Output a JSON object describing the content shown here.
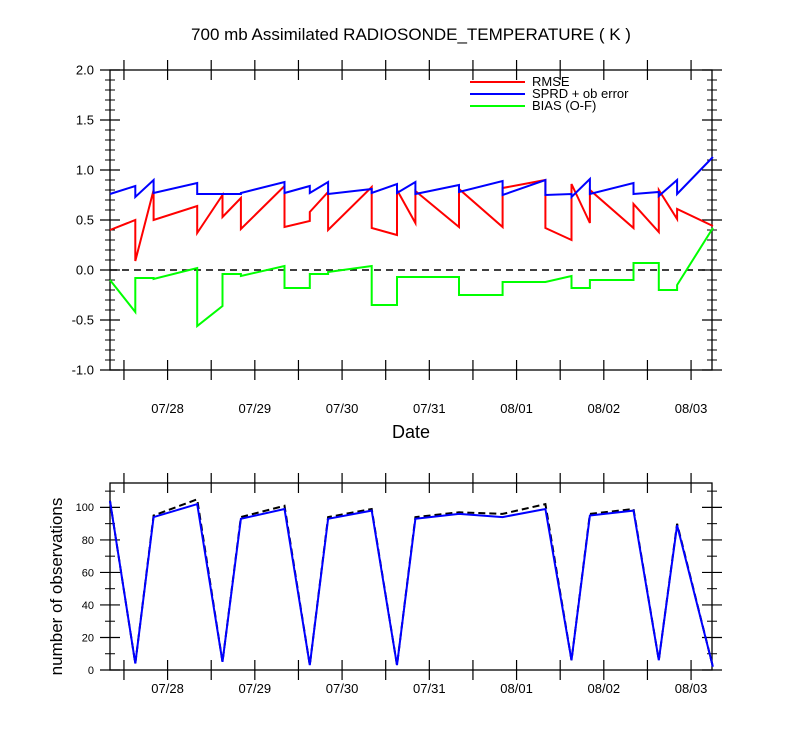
{
  "chart_data": [
    {
      "type": "line",
      "title": "700 mb Assimilated RADIOSONDE_TEMPERATURE ( K )",
      "xlabel": "Date",
      "ylabel": "",
      "ylim": [
        -1.0,
        2.0
      ],
      "yticks": [
        "2.0",
        "1.5",
        "1.0",
        "0.5",
        "0.0",
        "-0.5",
        "-1.0"
      ],
      "ytick_values": [
        2.0,
        1.5,
        1.0,
        0.5,
        0.0,
        -0.5,
        -1.0
      ],
      "date_ticks": [
        "07/28",
        "07/29",
        "07/30",
        "07/31",
        "08/01",
        "08/02",
        "08/03"
      ],
      "date_tick_values": [
        0.66,
        1.66,
        2.66,
        3.66,
        4.66,
        5.66,
        6.66
      ],
      "xlim": [
        0.0,
        6.9
      ],
      "legend_position": "top-right",
      "zero_line": true,
      "series": [
        {
          "name": "RMSE",
          "color": "#ff0000",
          "x": [
            0.0,
            0.29,
            0.29,
            0.5,
            0.5,
            1.0,
            1.0,
            1.29,
            1.29,
            1.5,
            1.5,
            2.0,
            2.0,
            2.29,
            2.29,
            2.5,
            2.5,
            3.0,
            3.0,
            3.29,
            3.29,
            3.5,
            3.5,
            4.0,
            4.0,
            4.5,
            4.5,
            4.99,
            4.99,
            5.29,
            5.29,
            5.5,
            5.5,
            6.0,
            6.0,
            6.29,
            6.29,
            6.5,
            6.5,
            6.91
          ],
          "y": [
            0.4,
            0.5,
            0.09,
            0.8,
            0.5,
            0.64,
            0.37,
            0.75,
            0.53,
            0.72,
            0.41,
            0.84,
            0.43,
            0.49,
            0.58,
            0.78,
            0.4,
            0.83,
            0.42,
            0.35,
            0.8,
            0.47,
            0.79,
            0.43,
            0.81,
            0.43,
            0.82,
            0.9,
            0.42,
            0.3,
            0.86,
            0.47,
            0.8,
            0.42,
            0.66,
            0.38,
            0.8,
            0.51,
            0.61,
            0.44
          ]
        },
        {
          "name": "SPRD + ob error",
          "color": "#0000ff",
          "x": [
            0.0,
            0.29,
            0.29,
            0.5,
            0.5,
            1.0,
            1.0,
            1.29,
            1.29,
            1.5,
            1.5,
            2.0,
            2.0,
            2.29,
            2.29,
            2.5,
            2.5,
            3.0,
            3.0,
            3.29,
            3.29,
            3.5,
            3.5,
            4.0,
            4.0,
            4.5,
            4.5,
            4.99,
            4.99,
            5.29,
            5.29,
            5.5,
            5.5,
            6.0,
            6.0,
            6.29,
            6.29,
            6.5,
            6.5,
            6.91
          ],
          "y": [
            0.76,
            0.84,
            0.73,
            0.9,
            0.77,
            0.87,
            0.76,
            0.76,
            0.76,
            0.76,
            0.77,
            0.88,
            0.77,
            0.84,
            0.77,
            0.88,
            0.76,
            0.81,
            0.77,
            0.86,
            0.77,
            0.88,
            0.76,
            0.85,
            0.78,
            0.89,
            0.75,
            0.9,
            0.75,
            0.76,
            0.73,
            0.91,
            0.76,
            0.87,
            0.76,
            0.78,
            0.74,
            0.9,
            0.76,
            1.13
          ]
        },
        {
          "name": "BIAS (O-F)",
          "color": "#00ff00",
          "x": [
            0.0,
            0.29,
            0.29,
            0.5,
            0.5,
            1.0,
            1.0,
            1.29,
            1.29,
            1.5,
            1.5,
            2.0,
            2.0,
            2.29,
            2.29,
            2.5,
            2.5,
            3.0,
            3.0,
            3.29,
            3.29,
            3.5,
            3.5,
            4.0,
            4.0,
            4.5,
            4.5,
            4.99,
            4.99,
            5.29,
            5.29,
            5.5,
            5.5,
            6.0,
            6.0,
            6.29,
            6.29,
            6.5,
            6.5,
            6.91
          ],
          "y": [
            -0.1,
            -0.42,
            -0.08,
            -0.08,
            -0.09,
            0.02,
            -0.56,
            -0.36,
            -0.04,
            -0.04,
            -0.06,
            0.04,
            -0.18,
            -0.18,
            -0.04,
            -0.04,
            -0.02,
            0.04,
            -0.35,
            -0.35,
            -0.07,
            -0.07,
            -0.07,
            -0.07,
            -0.25,
            -0.25,
            -0.12,
            -0.12,
            -0.12,
            -0.06,
            -0.18,
            -0.18,
            -0.1,
            -0.1,
            0.07,
            0.07,
            -0.2,
            -0.2,
            -0.15,
            0.42
          ]
        }
      ]
    },
    {
      "type": "line",
      "title": "",
      "xlabel": "",
      "ylabel": "number of observations",
      "ylim": [
        0,
        115
      ],
      "yticks": [
        "100",
        "80",
        "60",
        "40",
        "20",
        "0"
      ],
      "ytick_values": [
        100,
        80,
        60,
        40,
        20,
        0
      ],
      "date_ticks": [
        "07/28",
        "07/29",
        "07/30",
        "07/31",
        "08/01",
        "08/02",
        "08/03"
      ],
      "date_tick_values": [
        0.66,
        1.66,
        2.66,
        3.66,
        4.66,
        5.66,
        6.66
      ],
      "xlim": [
        0.0,
        6.9
      ],
      "series": [
        {
          "name": "",
          "color": "#000000",
          "dashed": true,
          "x": [
            0.0,
            0.29,
            0.5,
            1.0,
            1.29,
            1.5,
            2.0,
            2.29,
            2.5,
            3.0,
            3.29,
            3.5,
            4.0,
            4.5,
            4.99,
            5.29,
            5.5,
            6.0,
            6.29,
            6.5,
            6.91
          ],
          "y": [
            104,
            4,
            95,
            105,
            5,
            94,
            101,
            3,
            94,
            99,
            3,
            94,
            97,
            96,
            102,
            6,
            96,
            99,
            6,
            90,
            2
          ]
        },
        {
          "name": "",
          "color": "#0000ff",
          "dashed": false,
          "x": [
            0.0,
            0.29,
            0.5,
            1.0,
            1.29,
            1.5,
            2.0,
            2.29,
            2.5,
            3.0,
            3.29,
            3.5,
            4.0,
            4.5,
            4.99,
            5.29,
            5.5,
            6.0,
            6.29,
            6.5,
            6.91
          ],
          "y": [
            104,
            4,
            94,
            102,
            5,
            93,
            99,
            3,
            93,
            98,
            3,
            93,
            96,
            94,
            99,
            6,
            95,
            98,
            6,
            89,
            2
          ]
        }
      ]
    }
  ]
}
